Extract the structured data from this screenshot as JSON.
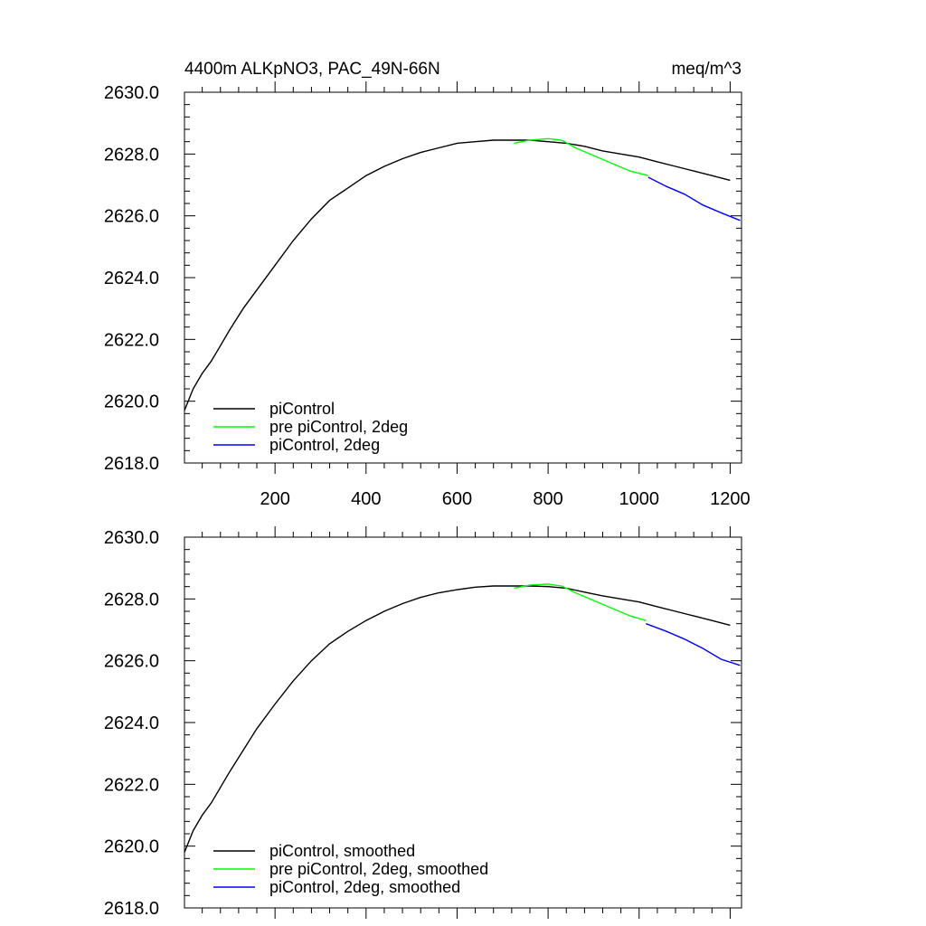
{
  "chart_data": [
    {
      "type": "line",
      "title": "4400m ALKpNO3, PAC_49N-66N",
      "units": "meq/m^3",
      "xlim": [
        1,
        1225
      ],
      "ylim": [
        2618.0,
        2630.0
      ],
      "xticks": [
        200,
        400,
        600,
        800,
        1000,
        1200
      ],
      "xtick_labels": [
        "200",
        "400",
        "600",
        "800",
        "1000",
        "1200"
      ],
      "yticks": [
        2618.0,
        2620.0,
        2622.0,
        2624.0,
        2626.0,
        2628.0,
        2630.0
      ],
      "ytick_labels": [
        "2618.0",
        "2620.0",
        "2622.0",
        "2624.0",
        "2626.0",
        "2628.0",
        "2630.0"
      ],
      "legend_position": "bottom-left",
      "series": [
        {
          "name": "piControl",
          "color": "#000000",
          "x": [
            1,
            20,
            40,
            60,
            80,
            100,
            130,
            160,
            200,
            240,
            280,
            320,
            360,
            400,
            440,
            480,
            520,
            560,
            600,
            640,
            680,
            720,
            760,
            800,
            840,
            880,
            920,
            960,
            1000,
            1040,
            1080,
            1120,
            1160,
            1200
          ],
          "values": [
            2619.7,
            2620.4,
            2620.9,
            2621.3,
            2621.8,
            2622.3,
            2623.0,
            2623.6,
            2624.4,
            2625.2,
            2625.9,
            2626.5,
            2626.9,
            2627.3,
            2627.6,
            2627.85,
            2628.05,
            2628.2,
            2628.35,
            2628.4,
            2628.45,
            2628.45,
            2628.45,
            2628.4,
            2628.35,
            2628.25,
            2628.1,
            2628.0,
            2627.9,
            2627.75,
            2627.6,
            2627.45,
            2627.3,
            2627.15
          ]
        },
        {
          "name": "pre piControl, 2deg",
          "color": "#00ff00",
          "x": [
            725,
            760,
            800,
            830,
            860,
            900,
            940,
            980,
            1020
          ],
          "values": [
            2628.35,
            2628.45,
            2628.5,
            2628.45,
            2628.2,
            2627.95,
            2627.7,
            2627.45,
            2627.3
          ]
        },
        {
          "name": "piControl, 2deg",
          "color": "#0000ff",
          "x": [
            1020,
            1060,
            1100,
            1140,
            1180,
            1222
          ],
          "values": [
            2627.25,
            2626.95,
            2626.7,
            2626.35,
            2626.1,
            2625.85
          ]
        }
      ]
    },
    {
      "type": "line",
      "xlim": [
        1,
        1225
      ],
      "ylim": [
        2618.0,
        2630.0
      ],
      "xticks": [
        200,
        400,
        600,
        800,
        1000,
        1200
      ],
      "yticks": [
        2618.0,
        2620.0,
        2622.0,
        2624.0,
        2626.0,
        2628.0,
        2630.0
      ],
      "ytick_labels": [
        "2618.0",
        "2620.0",
        "2622.0",
        "2624.0",
        "2626.0",
        "2628.0",
        "2630.0"
      ],
      "legend_position": "bottom-left",
      "series": [
        {
          "name": "piControl, smoothed",
          "color": "#000000",
          "x": [
            1,
            20,
            40,
            60,
            80,
            100,
            130,
            160,
            200,
            240,
            280,
            320,
            360,
            400,
            440,
            480,
            520,
            560,
            600,
            640,
            680,
            720,
            760,
            800,
            840,
            880,
            920,
            960,
            1000,
            1040,
            1080,
            1120,
            1160,
            1200
          ],
          "values": [
            2619.8,
            2620.5,
            2621.0,
            2621.4,
            2621.9,
            2622.4,
            2623.1,
            2623.8,
            2624.6,
            2625.35,
            2626.0,
            2626.55,
            2626.95,
            2627.3,
            2627.6,
            2627.85,
            2628.05,
            2628.2,
            2628.3,
            2628.38,
            2628.42,
            2628.42,
            2628.42,
            2628.4,
            2628.35,
            2628.22,
            2628.1,
            2628.0,
            2627.9,
            2627.75,
            2627.6,
            2627.45,
            2627.3,
            2627.15
          ]
        },
        {
          "name": "pre piControl, 2deg, smoothed",
          "color": "#00ff00",
          "x": [
            725,
            760,
            800,
            830,
            860,
            900,
            940,
            980,
            1015
          ],
          "values": [
            2628.35,
            2628.45,
            2628.48,
            2628.42,
            2628.2,
            2627.95,
            2627.7,
            2627.45,
            2627.3
          ]
        },
        {
          "name": "piControl, 2deg, smoothed",
          "color": "#0000ff",
          "x": [
            1015,
            1060,
            1100,
            1140,
            1180,
            1222
          ],
          "values": [
            2627.2,
            2626.95,
            2626.7,
            2626.4,
            2626.05,
            2625.85
          ]
        }
      ]
    }
  ]
}
